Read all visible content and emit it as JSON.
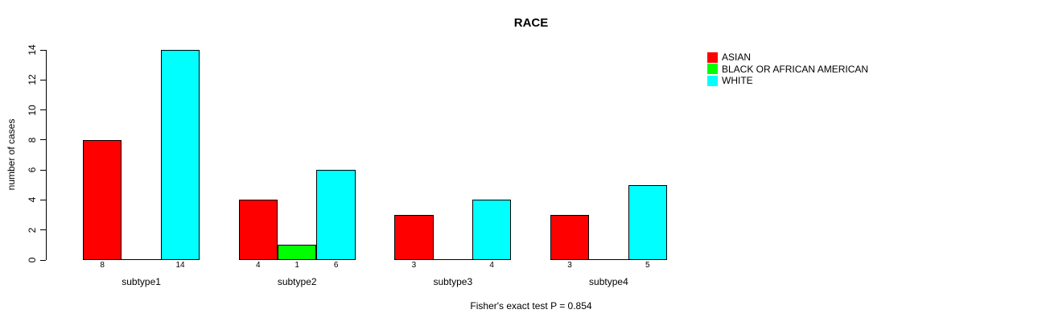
{
  "chart_data": {
    "type": "bar",
    "title": "RACE",
    "ylabel": "number of cases",
    "xlabel": "",
    "footnote": "Fisher's exact test P = 0.854",
    "categories": [
      "subtype1",
      "subtype2",
      "subtype3",
      "subtype4"
    ],
    "series": [
      {
        "name": "ASIAN",
        "color": "#ff0000",
        "values": [
          8,
          4,
          3,
          3
        ]
      },
      {
        "name": "BLACK OR AFRICAN AMERICAN",
        "color": "#00ff00",
        "values": [
          0,
          1,
          0,
          0
        ]
      },
      {
        "name": "WHITE",
        "color": "#00ffff",
        "values": [
          14,
          6,
          4,
          5
        ]
      }
    ],
    "y_ticks": [
      0,
      2,
      4,
      6,
      8,
      10,
      12,
      14
    ],
    "ylim": [
      0,
      14
    ],
    "grid": false,
    "legend_position": "top-right",
    "bar_value_labels": "shown under each nonzero bar",
    "axis_color": "#000000",
    "background_color": "#ffffff"
  }
}
